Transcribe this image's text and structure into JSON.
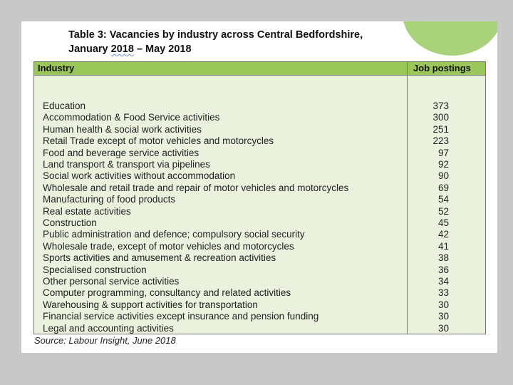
{
  "title_line1": "Table 3: Vacancies by industry across Central Bedfordshire,",
  "title_line2_prefix": "January ",
  "title_line2_year": "2018",
  "title_line2_suffix": "  – May 2018",
  "header": {
    "industry": "Industry",
    "postings": "Job postings"
  },
  "rows": [
    {
      "industry": "Education",
      "postings": "373"
    },
    {
      "industry": "Accommodation & Food Service activities",
      "postings": "300"
    },
    {
      "industry": "Human health & social work activities",
      "postings": "251"
    },
    {
      "industry": "Retail Trade except of motor vehicles and motorcycles",
      "postings": "223"
    },
    {
      "industry": "Food and beverage service activities",
      "postings": "97"
    },
    {
      "industry": "Land transport & transport via pipelines",
      "postings": "92"
    },
    {
      "industry": "Social work activities without accommodation",
      "postings": "90"
    },
    {
      "industry": "Wholesale and retail trade and repair of motor vehicles and motorcycles",
      "postings": "69"
    },
    {
      "industry": "Manufacturing of food products",
      "postings": "54"
    },
    {
      "industry": "Real estate activities",
      "postings": "52"
    },
    {
      "industry": "Construction",
      "postings": "45"
    },
    {
      "industry": "Public administration and defence; compulsory social security",
      "postings": "42"
    },
    {
      "industry": "Wholesale trade, except of motor vehicles and motorcycles",
      "postings": "41"
    },
    {
      "industry": "Sports activities and amusement & recreation activities",
      "postings": "38"
    },
    {
      "industry": "Specialised construction",
      "postings": "36"
    },
    {
      "industry": "Other personal service activities",
      "postings": "34"
    },
    {
      "industry": "Computer programming, consultancy and related activities",
      "postings": "33"
    },
    {
      "industry": "Warehousing & support activities for transportation",
      "postings": "30"
    },
    {
      "industry": "Financial service activities except insurance and pension funding",
      "postings": "30"
    },
    {
      "industry": "Legal and accounting activities",
      "postings": "30"
    }
  ],
  "source": "Source: Labour Insight, June 2018",
  "colors": {
    "header_green": "#9bc65a",
    "table_bg": "#eaf1dd",
    "accent_blob": "#a9d27a"
  }
}
